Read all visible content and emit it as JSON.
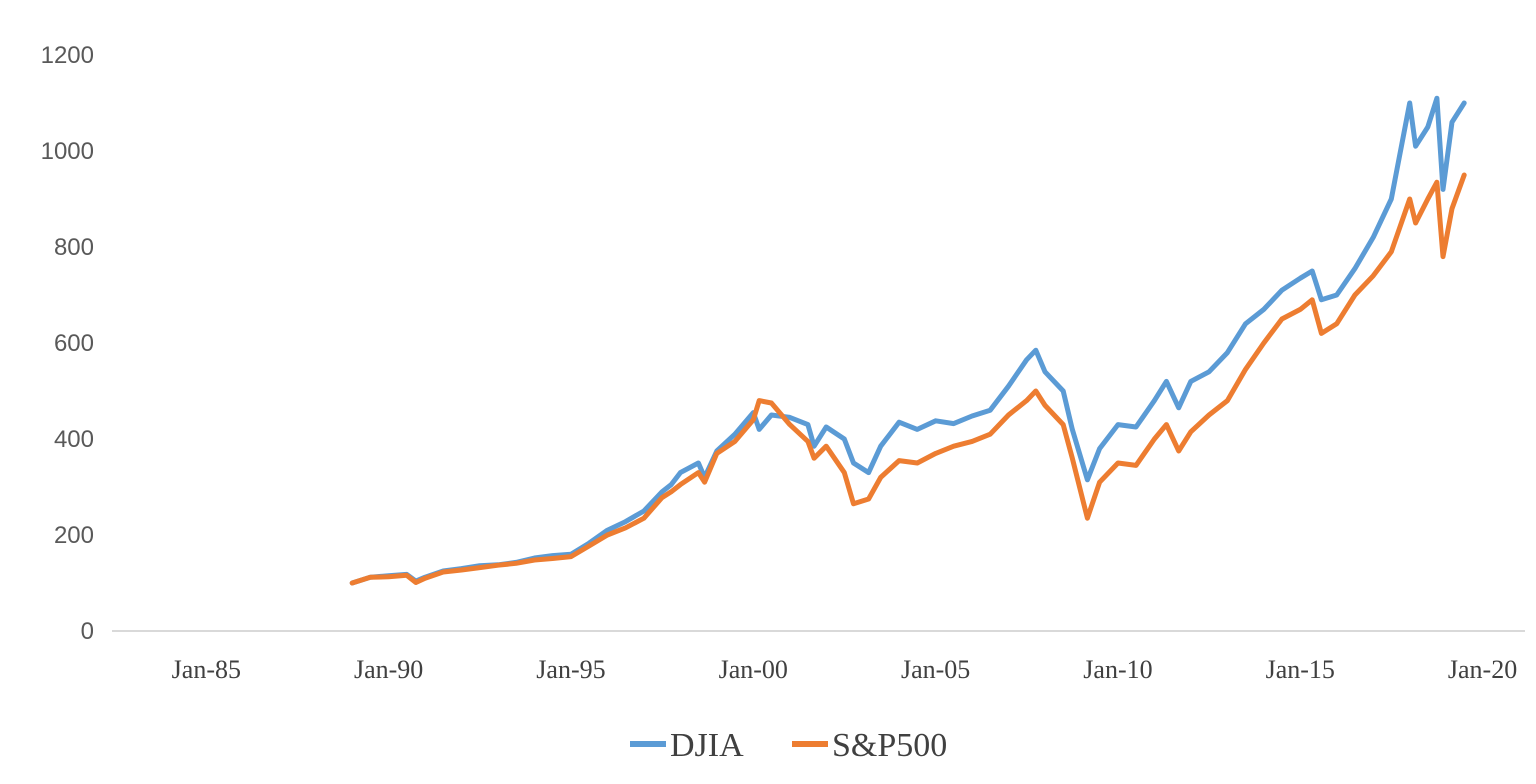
{
  "chart_data": {
    "type": "line",
    "title": "",
    "xlabel": "",
    "ylabel": "",
    "xlim": [
      "1982-06-01",
      "2021-03-01"
    ],
    "ylim": [
      0,
      1200
    ],
    "y_ticks": [
      "0",
      "200",
      "400",
      "600",
      "800",
      "1000",
      "1200"
    ],
    "x_ticks": [
      {
        "date": "1985-01-01",
        "label": "Jan-85"
      },
      {
        "date": "1990-01-01",
        "label": "Jan-90"
      },
      {
        "date": "1995-01-01",
        "label": "Jan-95"
      },
      {
        "date": "2000-01-01",
        "label": "Jan-00"
      },
      {
        "date": "2005-01-01",
        "label": "Jan-05"
      },
      {
        "date": "2010-01-01",
        "label": "Jan-10"
      },
      {
        "date": "2015-01-01",
        "label": "Jan-15"
      },
      {
        "date": "2020-01-01",
        "label": "Jan-20"
      }
    ],
    "grid": false,
    "legend_position": "bottom-center",
    "series": [
      {
        "name": "DJIA",
        "color": "#5B9BD5",
        "points": [
          [
            "1989-01-01",
            100
          ],
          [
            "1989-07-01",
            112
          ],
          [
            "1990-01-01",
            115
          ],
          [
            "1990-07-01",
            118
          ],
          [
            "1990-10-01",
            104
          ],
          [
            "1991-01-01",
            112
          ],
          [
            "1991-07-01",
            125
          ],
          [
            "1992-01-01",
            130
          ],
          [
            "1992-07-01",
            136
          ],
          [
            "1993-01-01",
            138
          ],
          [
            "1993-07-01",
            143
          ],
          [
            "1994-01-01",
            152
          ],
          [
            "1994-07-01",
            157
          ],
          [
            "1995-01-01",
            160
          ],
          [
            "1995-07-01",
            183
          ],
          [
            "1996-01-01",
            210
          ],
          [
            "1996-07-01",
            228
          ],
          [
            "1997-01-01",
            250
          ],
          [
            "1997-07-01",
            290
          ],
          [
            "1997-10-01",
            305
          ],
          [
            "1998-01-01",
            330
          ],
          [
            "1998-07-01",
            350
          ],
          [
            "1998-09-01",
            320
          ],
          [
            "1999-01-01",
            375
          ],
          [
            "1999-07-01",
            410
          ],
          [
            "2000-01-01",
            455
          ],
          [
            "2000-03-01",
            420
          ],
          [
            "2000-07-01",
            450
          ],
          [
            "2001-01-01",
            445
          ],
          [
            "2001-07-01",
            430
          ],
          [
            "2001-09-01",
            385
          ],
          [
            "2002-01-01",
            425
          ],
          [
            "2002-07-01",
            400
          ],
          [
            "2002-10-01",
            350
          ],
          [
            "2003-03-01",
            330
          ],
          [
            "2003-07-01",
            385
          ],
          [
            "2004-01-01",
            435
          ],
          [
            "2004-07-01",
            420
          ],
          [
            "2005-01-01",
            438
          ],
          [
            "2005-07-01",
            432
          ],
          [
            "2006-01-01",
            448
          ],
          [
            "2006-07-01",
            460
          ],
          [
            "2007-01-01",
            510
          ],
          [
            "2007-07-01",
            565
          ],
          [
            "2007-10-01",
            585
          ],
          [
            "2008-01-01",
            540
          ],
          [
            "2008-07-01",
            500
          ],
          [
            "2008-10-01",
            420
          ],
          [
            "2009-03-01",
            315
          ],
          [
            "2009-07-01",
            380
          ],
          [
            "2010-01-01",
            430
          ],
          [
            "2010-07-01",
            425
          ],
          [
            "2011-01-01",
            480
          ],
          [
            "2011-05-01",
            520
          ],
          [
            "2011-09-01",
            465
          ],
          [
            "2012-01-01",
            520
          ],
          [
            "2012-07-01",
            540
          ],
          [
            "2013-01-01",
            580
          ],
          [
            "2013-07-01",
            640
          ],
          [
            "2014-01-01",
            670
          ],
          [
            "2014-07-01",
            710
          ],
          [
            "2015-01-01",
            735
          ],
          [
            "2015-05-01",
            750
          ],
          [
            "2015-08-01",
            690
          ],
          [
            "2016-01-01",
            700
          ],
          [
            "2016-07-01",
            755
          ],
          [
            "2017-01-01",
            820
          ],
          [
            "2017-07-01",
            900
          ],
          [
            "2018-01-01",
            1100
          ],
          [
            "2018-03-01",
            1010
          ],
          [
            "2018-07-01",
            1050
          ],
          [
            "2018-10-01",
            1110
          ],
          [
            "2018-12-01",
            920
          ],
          [
            "2019-03-01",
            1060
          ],
          [
            "2019-07-01",
            1100
          ]
        ]
      },
      {
        "name": "S&P500",
        "color": "#ED7D31",
        "points": [
          [
            "1989-01-01",
            100
          ],
          [
            "1989-07-01",
            112
          ],
          [
            "1990-01-01",
            113
          ],
          [
            "1990-07-01",
            116
          ],
          [
            "1990-10-01",
            101
          ],
          [
            "1991-01-01",
            110
          ],
          [
            "1991-07-01",
            123
          ],
          [
            "1992-01-01",
            127
          ],
          [
            "1992-07-01",
            132
          ],
          [
            "1993-01-01",
            137
          ],
          [
            "1993-07-01",
            141
          ],
          [
            "1994-01-01",
            148
          ],
          [
            "1994-07-01",
            151
          ],
          [
            "1995-01-01",
            155
          ],
          [
            "1995-07-01",
            177
          ],
          [
            "1996-01-01",
            200
          ],
          [
            "1996-07-01",
            215
          ],
          [
            "1997-01-01",
            235
          ],
          [
            "1997-07-01",
            278
          ],
          [
            "1997-10-01",
            290
          ],
          [
            "1998-01-01",
            305
          ],
          [
            "1998-07-01",
            330
          ],
          [
            "1998-09-01",
            310
          ],
          [
            "1999-01-01",
            370
          ],
          [
            "1999-07-01",
            395
          ],
          [
            "2000-01-01",
            440
          ],
          [
            "2000-03-01",
            480
          ],
          [
            "2000-07-01",
            475
          ],
          [
            "2001-01-01",
            430
          ],
          [
            "2001-07-01",
            395
          ],
          [
            "2001-09-01",
            360
          ],
          [
            "2002-01-01",
            385
          ],
          [
            "2002-07-01",
            330
          ],
          [
            "2002-10-01",
            265
          ],
          [
            "2003-03-01",
            275
          ],
          [
            "2003-07-01",
            320
          ],
          [
            "2004-01-01",
            355
          ],
          [
            "2004-07-01",
            350
          ],
          [
            "2005-01-01",
            370
          ],
          [
            "2005-07-01",
            385
          ],
          [
            "2006-01-01",
            395
          ],
          [
            "2006-07-01",
            410
          ],
          [
            "2007-01-01",
            450
          ],
          [
            "2007-07-01",
            480
          ],
          [
            "2007-10-01",
            500
          ],
          [
            "2008-01-01",
            470
          ],
          [
            "2008-07-01",
            430
          ],
          [
            "2008-10-01",
            360
          ],
          [
            "2009-03-01",
            235
          ],
          [
            "2009-07-01",
            310
          ],
          [
            "2010-01-01",
            350
          ],
          [
            "2010-07-01",
            345
          ],
          [
            "2011-01-01",
            400
          ],
          [
            "2011-05-01",
            430
          ],
          [
            "2011-09-01",
            375
          ],
          [
            "2012-01-01",
            415
          ],
          [
            "2012-07-01",
            450
          ],
          [
            "2013-01-01",
            480
          ],
          [
            "2013-07-01",
            545
          ],
          [
            "2014-01-01",
            600
          ],
          [
            "2014-07-01",
            650
          ],
          [
            "2015-01-01",
            670
          ],
          [
            "2015-05-01",
            690
          ],
          [
            "2015-08-01",
            620
          ],
          [
            "2016-01-01",
            640
          ],
          [
            "2016-07-01",
            700
          ],
          [
            "2017-01-01",
            740
          ],
          [
            "2017-07-01",
            790
          ],
          [
            "2018-01-01",
            900
          ],
          [
            "2018-03-01",
            850
          ],
          [
            "2018-07-01",
            900
          ],
          [
            "2018-10-01",
            935
          ],
          [
            "2018-12-01",
            780
          ],
          [
            "2019-03-01",
            880
          ],
          [
            "2019-07-01",
            950
          ]
        ]
      }
    ]
  }
}
